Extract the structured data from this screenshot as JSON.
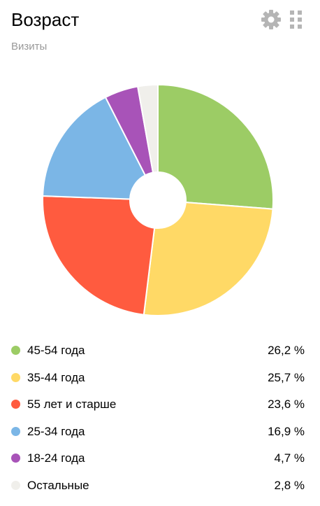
{
  "widget": {
    "title": "Возраст",
    "subtitle": "Визиты",
    "icons": {
      "settings": "gear-icon",
      "drag": "drag-handle-icon"
    }
  },
  "chart_data": {
    "type": "pie",
    "donut": true,
    "categories": [
      "45-54 года",
      "35-44 года",
      "55 лет и старше",
      "25-34 года",
      "18-24 года",
      "Остальные"
    ],
    "values": [
      26.2,
      25.7,
      23.6,
      16.9,
      4.7,
      2.8
    ],
    "value_labels": [
      "26,2 %",
      "25,7 %",
      "23,6 %",
      "16,9 %",
      "4,7 %",
      "2,8 %"
    ],
    "colors": [
      "#9ccc65",
      "#ffd966",
      "#ff5b3f",
      "#7bb6e6",
      "#a853b8",
      "#f0efeb"
    ],
    "legend": "bottom"
  }
}
